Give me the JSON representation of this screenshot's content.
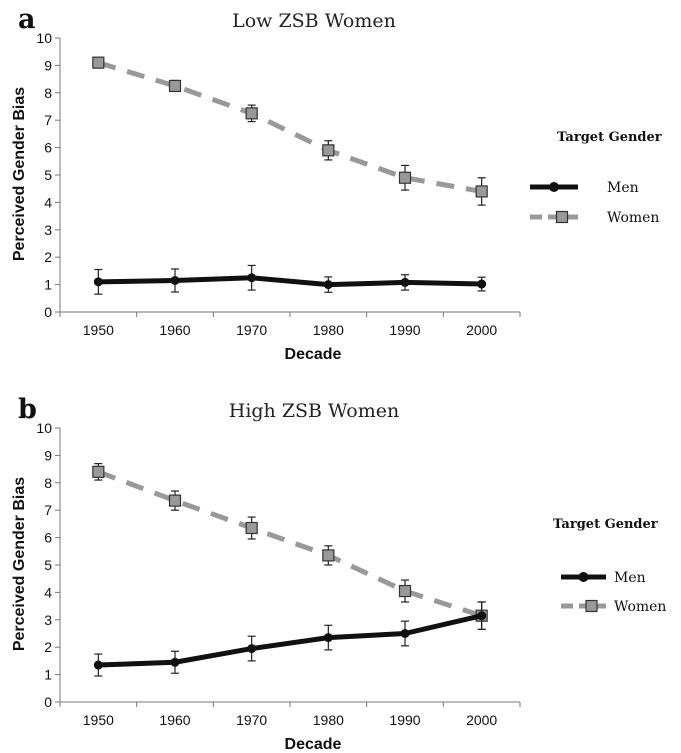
{
  "chart_data": [
    {
      "type": "line",
      "panel": "a",
      "title": "Low ZSB Women",
      "xlabel": "Decade",
      "ylabel": "Perceived Gender Bias",
      "categories": [
        "1950",
        "1960",
        "1970",
        "1980",
        "1990",
        "2000"
      ],
      "ylim": [
        0,
        10
      ],
      "yticks": [
        "0",
        "1",
        "2",
        "3",
        "4",
        "5",
        "6",
        "7",
        "8",
        "9",
        "10"
      ],
      "grid": false,
      "legend": {
        "title": "Target Gender",
        "position": "right"
      },
      "series": [
        {
          "name": "Men",
          "color": "#111111",
          "marker": "circle",
          "line": "solid",
          "values": [
            1.1,
            1.15,
            1.25,
            1.0,
            1.08,
            1.02
          ],
          "error": [
            0.45,
            0.42,
            0.45,
            0.28,
            0.28,
            0.25
          ]
        },
        {
          "name": "Women",
          "color": "#999999",
          "marker": "square",
          "line": "dashed",
          "values": [
            9.1,
            8.25,
            7.25,
            5.9,
            4.9,
            4.4
          ],
          "error": [
            0.15,
            0.2,
            0.3,
            0.35,
            0.45,
            0.5
          ]
        }
      ]
    },
    {
      "type": "line",
      "panel": "b",
      "title": "High ZSB Women",
      "xlabel": "Decade",
      "ylabel": "Perceived Gender Bias",
      "categories": [
        "1950",
        "1960",
        "1970",
        "1980",
        "1990",
        "2000"
      ],
      "ylim": [
        0,
        10
      ],
      "yticks": [
        "0",
        "1",
        "2",
        "3",
        "4",
        "5",
        "6",
        "7",
        "8",
        "9",
        "10"
      ],
      "grid": false,
      "legend": {
        "title": "Target Gender",
        "position": "right"
      },
      "series": [
        {
          "name": "Men",
          "color": "#111111",
          "marker": "circle",
          "line": "solid",
          "values": [
            1.35,
            1.45,
            1.95,
            2.35,
            2.5,
            3.15
          ],
          "error": [
            0.4,
            0.4,
            0.45,
            0.45,
            0.45,
            0.5
          ]
        },
        {
          "name": "Women",
          "color": "#999999",
          "marker": "square",
          "line": "dashed",
          "values": [
            8.4,
            7.35,
            6.35,
            5.35,
            4.05,
            3.15
          ],
          "error": [
            0.3,
            0.35,
            0.4,
            0.35,
            0.4,
            0.5
          ]
        }
      ]
    }
  ]
}
